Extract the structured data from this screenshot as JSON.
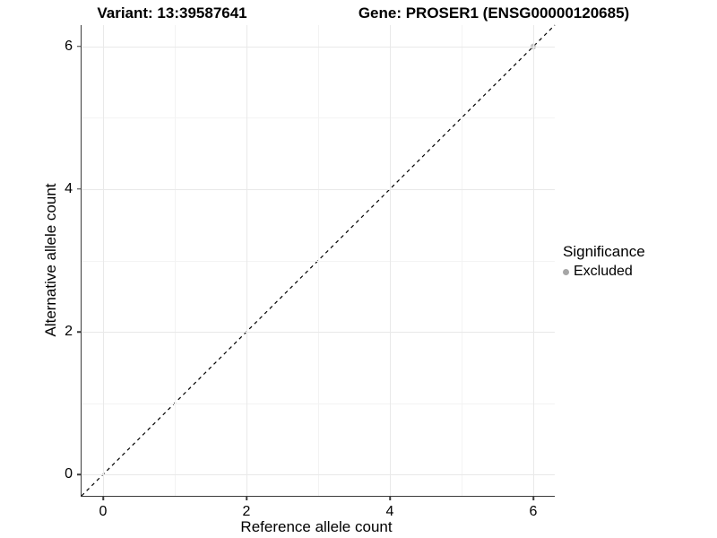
{
  "titles": {
    "variant": "Variant: 13:39587641",
    "gene": "Gene: PROSER1 (ENSG00000120685)"
  },
  "chart_data": {
    "type": "scatter",
    "title_left": "Variant: 13:39587641",
    "title_right": "Gene: PROSER1 (ENSG00000120685)",
    "xlabel": "Reference allele count",
    "ylabel": "Alternative allele count",
    "xlim": [
      -0.3,
      6.3
    ],
    "ylim": [
      -0.3,
      6.3
    ],
    "x_ticks": [
      0,
      2,
      4,
      6
    ],
    "y_ticks": [
      0,
      2,
      4,
      6
    ],
    "x_minor_ticks": [
      1,
      3,
      5
    ],
    "y_minor_ticks": [
      1,
      3,
      5
    ],
    "grid": "on",
    "legend": {
      "title": "Significance",
      "position": "right",
      "items": [
        {
          "label": "Excluded",
          "color": "#a6a6a6"
        }
      ]
    },
    "series": [
      {
        "name": "Excluded",
        "color": "#b3b3b3",
        "opacity": 0.8,
        "points": [
          {
            "x": 6,
            "y": 6
          }
        ]
      }
    ],
    "reference_line": {
      "slope": 1,
      "intercept": 0,
      "style": "dashed",
      "color": "#000000"
    },
    "colors": {
      "axis_line": "#3c3c3c",
      "grid_major": "#e9e9e9",
      "grid_minor": "#f3f3f3",
      "text": "#000000"
    }
  }
}
